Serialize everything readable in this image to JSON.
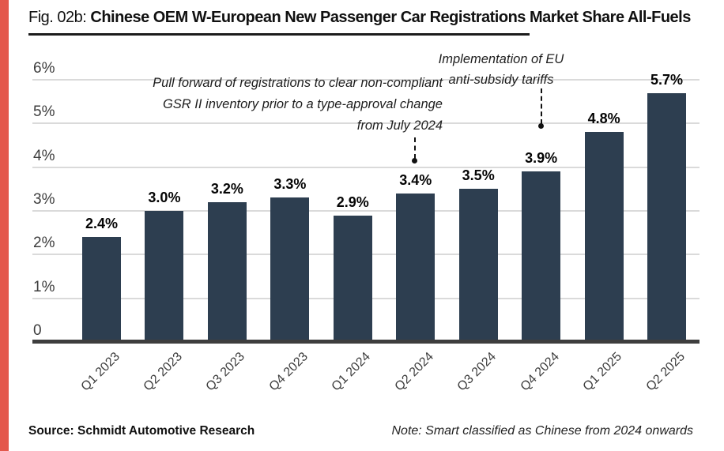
{
  "header": {
    "fig_label": "Fig. 02b:",
    "title": "Chinese OEM W-European New Passenger Car Registrations Market Share All-Fuels"
  },
  "chart_data": {
    "type": "bar",
    "title": "Chinese OEM W-European New Passenger Car Registrations Market Share All-Fuels",
    "categories": [
      "Q1 2023",
      "Q2 2023",
      "Q3 2023",
      "Q4 2023",
      "Q1 2024",
      "Q2 2024",
      "Q3 2024",
      "Q4 2024",
      "Q1 2025",
      "Q2 2025"
    ],
    "values": [
      2.4,
      3.0,
      3.2,
      3.3,
      2.9,
      3.4,
      3.5,
      3.9,
      4.8,
      5.7
    ],
    "bar_labels": [
      "2.4%",
      "3.0%",
      "3.2%",
      "3.3%",
      "2.9%",
      "3.4%",
      "3.5%",
      "3.9%",
      "4.8%",
      "5.7%"
    ],
    "xlabel": "",
    "ylabel": "",
    "ylim": [
      0,
      6
    ],
    "yticks": [
      0,
      1,
      2,
      3,
      4,
      5,
      6
    ],
    "ytick_labels": [
      "0",
      "1%",
      "2%",
      "3%",
      "4%",
      "5%",
      "6%"
    ],
    "grid": true,
    "legend": "none",
    "bar_color": "#2d3e50",
    "annotations": [
      {
        "lines": [
          "Pull forward of registrations to clear non-compliant",
          "GSR II inventory prior to a type-approval change",
          "from July 2024"
        ],
        "target_category": "Q2 2024",
        "align": "right"
      },
      {
        "lines": [
          "Implementation of EU",
          "anti-subsidy tariffs"
        ],
        "target_category": "Q4 2024",
        "align": "center"
      }
    ]
  },
  "footer": {
    "source": "Source: Schmidt Automotive Research",
    "note": "Note: Smart classified as Chinese from 2024 onwards"
  },
  "colors": {
    "accent_stripe": "#e4584c",
    "bar": "#2d3e50",
    "axis_line": "#3e3e3e",
    "gridline": "#dadada",
    "title_text": "#111111",
    "label_text": "#3d3d3d",
    "value_text": "#050505"
  }
}
